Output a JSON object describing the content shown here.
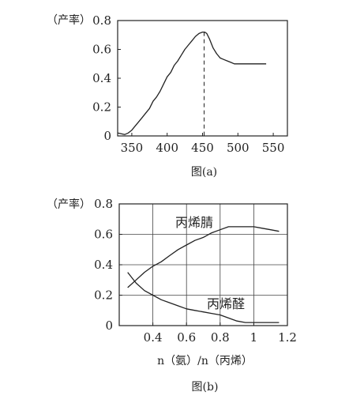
{
  "chart_data": [
    {
      "type": "line",
      "ylabel": "（产率）",
      "caption": "图(a)",
      "xlim": [
        330,
        570
      ],
      "ylim": [
        0,
        0.8
      ],
      "x_ticks": [
        350,
        400,
        450,
        500,
        550
      ],
      "y_ticks": [
        0,
        0.2,
        0.4,
        0.6,
        0.8
      ],
      "grid": false,
      "peak_marker_x": 450,
      "series": [
        {
          "x": [
            330,
            340,
            345,
            350,
            355,
            360,
            365,
            370,
            375,
            380,
            385,
            390,
            395,
            400,
            405,
            410,
            415,
            420,
            425,
            430,
            435,
            440,
            445,
            450,
            453,
            456,
            460,
            465,
            470,
            475,
            480,
            485,
            490,
            495,
            500,
            510,
            520,
            530,
            540
          ],
          "y": [
            0.02,
            0.01,
            0.02,
            0.04,
            0.07,
            0.1,
            0.13,
            0.16,
            0.19,
            0.24,
            0.27,
            0.31,
            0.36,
            0.41,
            0.44,
            0.49,
            0.52,
            0.56,
            0.6,
            0.63,
            0.66,
            0.69,
            0.71,
            0.72,
            0.72,
            0.71,
            0.67,
            0.61,
            0.57,
            0.54,
            0.53,
            0.52,
            0.51,
            0.5,
            0.5,
            0.5,
            0.5,
            0.5,
            0.5
          ]
        }
      ]
    },
    {
      "type": "line",
      "ylabel": "（产率）",
      "xlabel": "n（氨）/n（丙烯）",
      "caption": "图(b)",
      "xlim": [
        0.2,
        1.2
      ],
      "ylim": [
        0,
        0.8
      ],
      "x_ticks": [
        0.4,
        0.6,
        0.8,
        1.0,
        1.2
      ],
      "y_ticks": [
        0,
        0.2,
        0.4,
        0.6,
        0.8
      ],
      "grid": true,
      "series": [
        {
          "name": "丙烯腈",
          "x": [
            0.25,
            0.3,
            0.35,
            0.4,
            0.45,
            0.5,
            0.55,
            0.6,
            0.65,
            0.7,
            0.75,
            0.8,
            0.85,
            0.9,
            0.95,
            1.0,
            1.05,
            1.1,
            1.15
          ],
          "y": [
            0.25,
            0.3,
            0.35,
            0.39,
            0.42,
            0.46,
            0.5,
            0.53,
            0.56,
            0.58,
            0.61,
            0.63,
            0.65,
            0.65,
            0.65,
            0.65,
            0.64,
            0.63,
            0.62
          ]
        },
        {
          "name": "丙烯醛",
          "x": [
            0.25,
            0.3,
            0.35,
            0.4,
            0.45,
            0.5,
            0.55,
            0.6,
            0.65,
            0.7,
            0.75,
            0.8,
            0.85,
            0.9,
            0.95,
            1.0,
            1.05,
            1.1,
            1.15
          ],
          "y": [
            0.35,
            0.28,
            0.23,
            0.2,
            0.17,
            0.15,
            0.13,
            0.11,
            0.1,
            0.09,
            0.08,
            0.07,
            0.05,
            0.03,
            0.02,
            0.02,
            0.02,
            0.02,
            0.02
          ]
        }
      ]
    }
  ]
}
